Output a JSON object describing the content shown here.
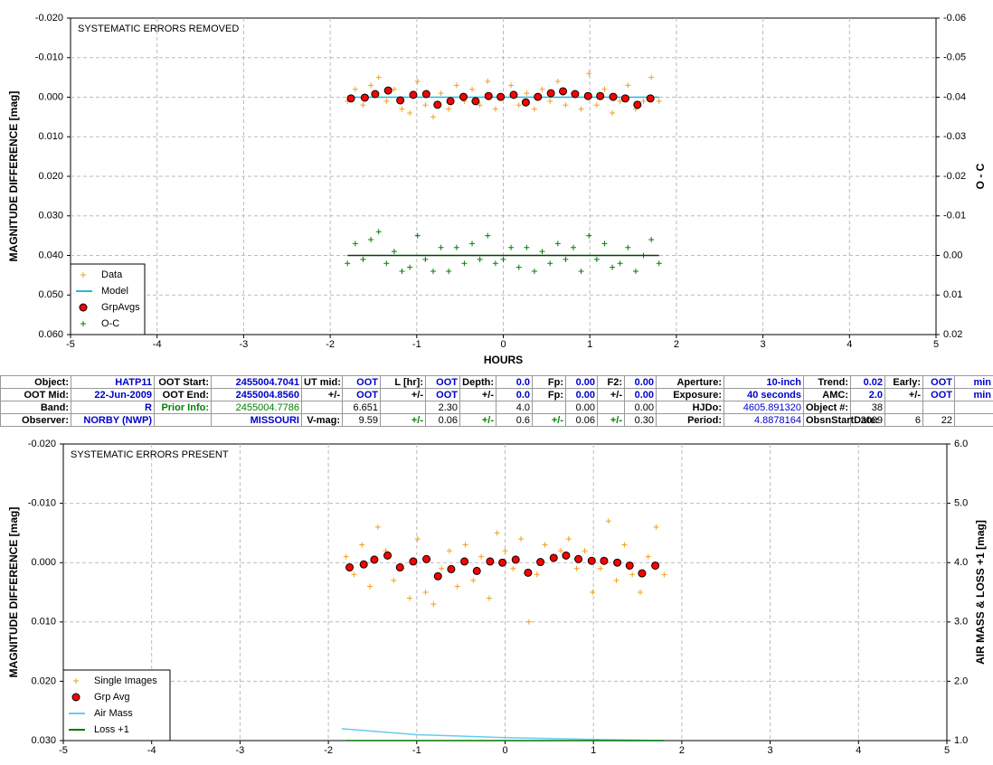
{
  "chart_data": [
    {
      "type": "scatter",
      "annotation": "SYSTEMATIC ERRORS REMOVED",
      "x_label": "HOURS",
      "y_label": "MAGNITUDE DIFFERENCE [mag]",
      "y2_label": "O - C",
      "xlim": [
        -5,
        5
      ],
      "xticks": [
        -5,
        -4,
        -3,
        -2,
        -1,
        0,
        1,
        2,
        3,
        4,
        5
      ],
      "ylim": [
        -0.02,
        0.06
      ],
      "yticks": [
        {
          "value": -0.02,
          "label": "-0.020"
        },
        {
          "value": -0.01,
          "label": "-0.010"
        },
        {
          "value": 0,
          "label": "0.000"
        },
        {
          "value": 0.01,
          "label": "0.010"
        },
        {
          "value": 0.02,
          "label": "0.020"
        },
        {
          "value": 0.03,
          "label": "0.030"
        },
        {
          "value": 0.04,
          "label": "0.040"
        },
        {
          "value": 0.05,
          "label": "0.050"
        },
        {
          "value": 0.06,
          "label": "0.060"
        }
      ],
      "y2lim": [
        -0.06,
        0.02
      ],
      "y2ticks": [
        -0.06,
        -0.05,
        -0.04,
        -0.03,
        -0.02,
        -0.01,
        {
          "value": 0,
          "label": "0.00"
        },
        0.01,
        0.02
      ],
      "y_inverted": true,
      "y2_inverted": true,
      "grid": true,
      "legend": "lower left",
      "series": [
        {
          "name": "Data",
          "marker": "plus",
          "color": "#f0a020",
          "x": [
            -1.8,
            -1.71,
            -1.62,
            -1.53,
            -1.44,
            -1.35,
            -1.26,
            -1.17,
            -1.08,
            -0.99,
            -0.9,
            -0.81,
            -0.72,
            -0.63,
            -0.54,
            -0.45,
            -0.36,
            -0.27,
            -0.18,
            -0.09,
            0,
            0.09,
            0.18,
            0.27,
            0.36,
            0.45,
            0.54,
            0.63,
            0.72,
            0.81,
            0.9,
            0.99,
            1.08,
            1.17,
            1.26,
            1.35,
            1.44,
            1.53,
            1.62,
            1.71,
            1.8
          ],
          "values": [
            0.001,
            -0.002,
            0.002,
            -0.003,
            -0.005,
            0.001,
            -0.002,
            0.003,
            0.004,
            -0.004,
            0.002,
            0.005,
            -0.001,
            0.003,
            -0.003,
            0.001,
            -0.002,
            0.002,
            -0.004,
            0.003,
            0,
            -0.003,
            0.002,
            -0.001,
            0.003,
            -0.002,
            0.001,
            -0.004,
            0.002,
            -0.001,
            0.003,
            -0.006,
            0.002,
            -0.002,
            0.004,
            0.001,
            -0.003,
            0.003,
            0.001,
            -0.005,
            0.001
          ]
        },
        {
          "name": "Model",
          "marker": "line",
          "color": "#22bbdd",
          "x": [
            -1.8,
            1.8
          ],
          "values": [
            0,
            0
          ]
        },
        {
          "name": "GrpAvgs",
          "marker": "circle",
          "color": "#ff0000",
          "x": [
            -1.76,
            -1.6,
            -1.48,
            -1.33,
            -1.19,
            -1.04,
            -0.89,
            -0.76,
            -0.61,
            -0.46,
            -0.32,
            -0.17,
            -0.03,
            0.12,
            0.26,
            0.4,
            0.55,
            0.69,
            0.83,
            0.98,
            1.12,
            1.27,
            1.41,
            1.55,
            1.7
          ],
          "values": [
            0.0003,
            0.0001,
            -0.0008,
            -0.0017,
            0.0008,
            -0.0006,
            -0.0008,
            0.0019,
            0.001,
            -0.0001,
            0.001,
            -0.0003,
            -0.0001,
            -0.0006,
            0.0013,
            -0.0001,
            -0.001,
            -0.0015,
            -0.0008,
            -0.0003,
            -0.0003,
            -0.0001,
            0.0003,
            0.0019,
            0.0003
          ]
        },
        {
          "name": "O-C",
          "marker": "plus",
          "color": "#008000",
          "axis": "y2",
          "x": [
            -1.8,
            -1.71,
            -1.62,
            -1.53,
            -1.44,
            -1.35,
            -1.26,
            -1.17,
            -1.08,
            -0.99,
            -0.9,
            -0.81,
            -0.72,
            -0.63,
            -0.54,
            -0.45,
            -0.36,
            -0.27,
            -0.18,
            -0.09,
            0,
            0.09,
            0.18,
            0.27,
            0.36,
            0.45,
            0.54,
            0.63,
            0.72,
            0.81,
            0.9,
            0.99,
            1.08,
            1.17,
            1.26,
            1.35,
            1.44,
            1.53,
            1.62,
            1.71,
            1.8
          ],
          "values": [
            0.002,
            -0.003,
            0.001,
            -0.004,
            -0.006,
            0.002,
            -0.001,
            0.004,
            0.003,
            -0.005,
            0.001,
            0.004,
            -0.002,
            0.004,
            -0.002,
            0.002,
            -0.003,
            0.001,
            -0.005,
            0.002,
            0.001,
            -0.002,
            0.003,
            -0.002,
            0.004,
            -0.001,
            0.002,
            -0.003,
            0.001,
            -0.002,
            0.004,
            -0.005,
            0.001,
            -0.003,
            0.003,
            0.002,
            -0.002,
            0.004,
            0,
            -0.004,
            0.002
          ]
        },
        {
          "marker": "line",
          "color": "#004400",
          "axis": "y2",
          "x": [
            -1.8,
            1.8
          ],
          "values": [
            0,
            0
          ]
        }
      ]
    },
    {
      "type": "scatter",
      "annotation": "SYSTEMATIC ERRORS PRESENT",
      "y_label": "MAGNITUDE DIFFERENCE [mag]",
      "y2_label": "AIR MASS & LOSS +1 [mag]",
      "xlim": [
        -5,
        5
      ],
      "xticks": [
        -5,
        -4,
        -3,
        -2,
        -1,
        0,
        1,
        2,
        3,
        4,
        5
      ],
      "ylim": [
        -0.02,
        0.03
      ],
      "yticks": [
        {
          "value": -0.02,
          "label": "-0.020"
        },
        {
          "value": -0.01,
          "label": "-0.010"
        },
        {
          "value": 0,
          "label": "0.000"
        },
        {
          "value": 0.01,
          "label": "0.010"
        },
        {
          "value": 0.02,
          "label": "0.020"
        },
        {
          "value": 0.03,
          "label": "0.030"
        }
      ],
      "y2lim": [
        1,
        6
      ],
      "y2ticks": [
        {
          "value": 1,
          "label": "1.0"
        },
        {
          "value": 2,
          "label": "2.0"
        },
        {
          "value": 3,
          "label": "3.0"
        },
        {
          "value": 4,
          "label": "4.0"
        },
        {
          "value": 5,
          "label": "5.0"
        },
        {
          "value": 6,
          "label": "6.0"
        }
      ],
      "y_inverted": true,
      "y2_inverted": false,
      "grid": true,
      "legend": "lower left",
      "series": [
        {
          "name": "Single Images",
          "marker": "plus",
          "color": "#f0a020",
          "x": [
            -1.8,
            -1.71,
            -1.62,
            -1.53,
            -1.44,
            -1.35,
            -1.26,
            -1.17,
            -1.08,
            -0.99,
            -0.9,
            -0.81,
            -0.72,
            -0.63,
            -0.54,
            -0.45,
            -0.36,
            -0.27,
            -0.18,
            -0.09,
            0,
            0.09,
            0.18,
            0.27,
            0.36,
            0.45,
            0.54,
            0.63,
            0.72,
            0.81,
            0.9,
            0.99,
            1.08,
            1.17,
            1.26,
            1.35,
            1.44,
            1.53,
            1.62,
            1.71,
            1.8
          ],
          "values": [
            -0.001,
            0.002,
            -0.003,
            0.004,
            -0.006,
            -0.002,
            0.003,
            0.001,
            0.006,
            -0.004,
            0.005,
            0.007,
            0.001,
            -0.002,
            0.004,
            -0.003,
            0.003,
            -0.001,
            0.006,
            -0.005,
            -0.002,
            0.001,
            -0.004,
            0.01,
            0.002,
            -0.003,
            -0.001,
            -0.002,
            -0.004,
            0.001,
            -0.002,
            0.005,
            0.001,
            -0.007,
            0.003,
            -0.003,
            0.002,
            0.005,
            -0.001,
            -0.006,
            0.002
          ]
        },
        {
          "name": "Grp Avg",
          "marker": "circle",
          "color": "#ff0000",
          "x": [
            -1.76,
            -1.6,
            -1.48,
            -1.33,
            -1.19,
            -1.04,
            -0.89,
            -0.76,
            -0.61,
            -0.46,
            -0.32,
            -0.17,
            -0.03,
            0.12,
            0.26,
            0.4,
            0.55,
            0.69,
            0.83,
            0.98,
            1.12,
            1.27,
            1.41,
            1.55,
            1.7
          ],
          "values": [
            0.0008,
            0.0003,
            -0.0005,
            -0.0012,
            0.0008,
            -0.0002,
            -0.0006,
            0.0023,
            0.0011,
            -0.0002,
            0.0014,
            -0.0002,
            0,
            -0.0005,
            0.0017,
            -0.0001,
            -0.0008,
            -0.0012,
            -0.0006,
            -0.0003,
            -0.0003,
            0,
            0.0005,
            0.0018,
            0.0005
          ]
        },
        {
          "name": "Air Mass",
          "marker": "line",
          "color": "#66ccee",
          "axis": "y2",
          "x": [
            -1.85,
            -1,
            0,
            1,
            1.8
          ],
          "values": [
            1.2,
            1.1,
            1.05,
            1.02,
            1.0
          ]
        },
        {
          "name": "Loss +1",
          "marker": "line",
          "color": "#007700",
          "axis": "y2",
          "x": [
            -1.8,
            1.8
          ],
          "values": [
            1.0,
            1.0
          ]
        }
      ]
    }
  ],
  "table": {
    "rows": [
      [
        "Object:",
        "HATP11",
        "OOT Start:",
        "2455004.7041",
        "UT mid:",
        "OOT",
        "L [hr]:",
        "OOT",
        "Depth:",
        "0.0",
        "Fp:",
        "0.00",
        "F2:",
        "0.00",
        "Aperture:",
        "10-inch",
        "Trend:",
        "0.02",
        "Early:",
        "OOT",
        "min"
      ],
      [
        "OOT Mid:",
        "22-Jun-2009",
        "OOT End:",
        "2455004.8560",
        "+/-",
        "OOT",
        "+/-",
        "OOT",
        "+/-",
        "0.0",
        "Fp:",
        "0.00",
        "+/-",
        "0.00",
        "Exposure:",
        "40 seconds",
        "AMC:",
        "2.0",
        "+/-",
        "OOT",
        "min"
      ],
      [
        "Band:",
        "R",
        "Prior Info:",
        "2455004.7786",
        null,
        "6.651",
        null,
        "2.30",
        null,
        "4.0",
        null,
        "0.00",
        null,
        "0.00",
        "HJDo:",
        "4605.891320",
        "Object #:",
        "38",
        null,
        null,
        null
      ],
      [
        "Observer:",
        "NORBY (NWP)",
        null,
        "MISSOURI",
        "V-mag:",
        "9.59",
        "+/-",
        "0.06",
        "+/-",
        "0.6",
        "+/-",
        "0.06",
        "+/-",
        "0.30",
        "Period:",
        "4.8878164",
        "ObsnStartDate:",
        "2009",
        "6",
        "22",
        null
      ]
    ]
  }
}
